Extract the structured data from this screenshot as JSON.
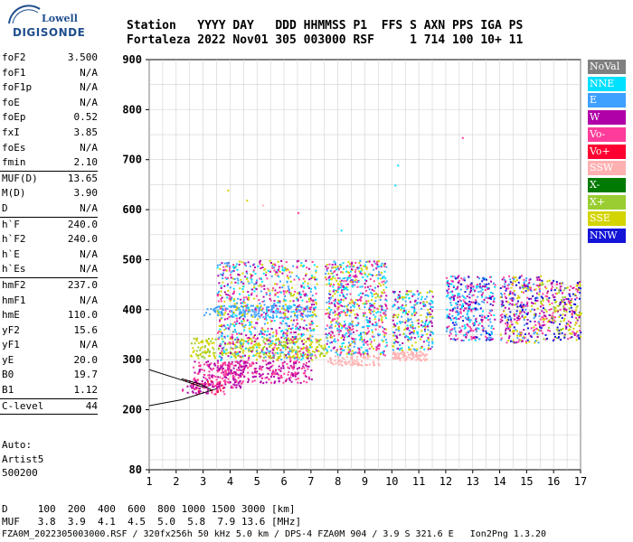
{
  "logo": {
    "line1": "Lowell",
    "line2": "DIGISONDE"
  },
  "header": {
    "line1": "Station   YYYY DAY   DDD HHMMSS P1  FFS S AXN PPS IGA PS",
    "line2": "Fortaleza 2022 Nov01 305 003000 RSF     1 714 100 10+ 11"
  },
  "params": [
    {
      "label": "foF2",
      "value": "3.500"
    },
    {
      "label": "foF1",
      "value": "N/A"
    },
    {
      "label": "foF1p",
      "value": "N/A"
    },
    {
      "label": "foE",
      "value": "N/A"
    },
    {
      "label": "foEp",
      "value": "0.52"
    },
    {
      "label": "fxI",
      "value": "3.85"
    },
    {
      "label": "foEs",
      "value": "N/A"
    },
    {
      "label": "fmin",
      "value": "2.10"
    },
    {
      "sep": true
    },
    {
      "label": "MUF(D)",
      "value": "13.65"
    },
    {
      "label": "M(D)",
      "value": "3.90"
    },
    {
      "label": "D",
      "value": "N/A"
    },
    {
      "sep": true
    },
    {
      "label": "h`F",
      "value": "240.0"
    },
    {
      "label": "h`F2",
      "value": "240.0"
    },
    {
      "label": "h`E",
      "value": "N/A"
    },
    {
      "label": "h`Es",
      "value": "N/A"
    },
    {
      "sep": true
    },
    {
      "label": "hmF2",
      "value": "237.0"
    },
    {
      "label": "hmF1",
      "value": "N/A"
    },
    {
      "label": "hmE",
      "value": "110.0"
    },
    {
      "label": "yF2",
      "value": "15.6"
    },
    {
      "label": "yF1",
      "value": "N/A"
    },
    {
      "label": "yE",
      "value": "20.0"
    },
    {
      "label": "B0",
      "value": "19.7"
    },
    {
      "label": "B1",
      "value": "1.12"
    },
    {
      "sep": true
    },
    {
      "label": "C-level",
      "value": "44"
    },
    {
      "sep": true
    }
  ],
  "auto": {
    "line1": "Auto:",
    "line2": "Artist5",
    "line3": "500200"
  },
  "footer": {
    "d_row": "D     100  200  400  600  800 1000 1500 3000 [km]",
    "muf_row": "MUF   3.8  3.9  4.1  4.5  5.0  5.8  7.9 13.6 [MHz]",
    "file_row": "FZA0M_2022305003000.RSF / 320fx256h 50 kHz 5.0 km / DPS-4 FZA0M 904 / 3.9 S 321.6 E   Ion2Png 1.3.20"
  },
  "chart_data": {
    "type": "scatter",
    "xlim": [
      1,
      17
    ],
    "ylim": [
      80,
      900
    ],
    "x_ticks": [
      1,
      2,
      3,
      4,
      5,
      6,
      7,
      8,
      9,
      10,
      11,
      12,
      13,
      14,
      15,
      16,
      17
    ],
    "y_ticks": [
      80,
      200,
      300,
      400,
      500,
      600,
      700,
      800,
      900
    ],
    "grid": true,
    "legend_position": "right",
    "legend": [
      {
        "name": "NoVal",
        "color": "#808080"
      },
      {
        "name": "NNE",
        "color": "#00e0ff"
      },
      {
        "name": "E",
        "color": "#3ea0ff"
      },
      {
        "name": "W",
        "color": "#b000a8"
      },
      {
        "name": "Vo-",
        "color": "#ff3c9a"
      },
      {
        "name": "Vo+",
        "color": "#ff0030"
      },
      {
        "name": "SSW",
        "color": "#ffb0b0"
      },
      {
        "name": "X-",
        "color": "#007a00"
      },
      {
        "name": "X+",
        "color": "#9acd32"
      },
      {
        "name": "SSE",
        "color": "#d4d400"
      },
      {
        "name": "NNW",
        "color": "#1414d8"
      }
    ],
    "clusters": [
      {
        "x": [
          2.2,
          3.8
        ],
        "y": [
          232,
          262
        ],
        "colors": [
          "Vo+",
          "Vo-",
          "W"
        ]
      },
      {
        "x": [
          2.6,
          4.5
        ],
        "y": [
          245,
          300
        ],
        "colors": [
          "Vo-",
          "W"
        ]
      },
      {
        "x": [
          3.5,
          7.0
        ],
        "y": [
          255,
          300
        ],
        "colors": [
          "Vo-",
          "W"
        ]
      },
      {
        "x": [
          2.5,
          7.5
        ],
        "y": [
          305,
          345
        ],
        "colors": [
          "SSE",
          "X+"
        ]
      },
      {
        "x": [
          3.0,
          7.0
        ],
        "y": [
          385,
          410
        ],
        "colors": [
          "E"
        ]
      },
      {
        "x": [
          3.5,
          7.2
        ],
        "y": [
          300,
          500
        ],
        "colors": [
          "W",
          "Vo-",
          "E",
          "NNE",
          "SSE"
        ]
      },
      {
        "x": [
          7.5,
          9.8
        ],
        "y": [
          310,
          500
        ],
        "colors": [
          "W",
          "Vo-",
          "E",
          "SSE",
          "NNE"
        ]
      },
      {
        "x": [
          7.6,
          9.5
        ],
        "y": [
          290,
          310
        ],
        "colors": [
          "SSW"
        ]
      },
      {
        "x": [
          10.0,
          11.5
        ],
        "y": [
          320,
          440
        ],
        "colors": [
          "W",
          "E",
          "SSE",
          "NNE"
        ]
      },
      {
        "x": [
          10.0,
          11.3
        ],
        "y": [
          300,
          318
        ],
        "colors": [
          "SSW"
        ]
      },
      {
        "x": [
          12.0,
          13.8
        ],
        "y": [
          340,
          470
        ],
        "colors": [
          "NNE",
          "E",
          "NNW",
          "W",
          "Vo-"
        ]
      },
      {
        "x": [
          14.0,
          15.5
        ],
        "y": [
          335,
          470
        ],
        "colors": [
          "NNW",
          "W",
          "Vo-",
          "E",
          "SSE"
        ]
      },
      {
        "x": [
          15.5,
          17.0
        ],
        "y": [
          340,
          460
        ],
        "colors": [
          "NNW",
          "SSE",
          "W",
          "Vo-",
          "X+"
        ]
      }
    ],
    "outliers": [
      {
        "x": 12.6,
        "y": 745,
        "color": "Vo-"
      },
      {
        "x": 10.2,
        "y": 690,
        "color": "NNE"
      },
      {
        "x": 10.1,
        "y": 650,
        "color": "NNE"
      },
      {
        "x": 3.9,
        "y": 640,
        "color": "SSE"
      },
      {
        "x": 4.6,
        "y": 620,
        "color": "SSE"
      },
      {
        "x": 5.2,
        "y": 610,
        "color": "SSW"
      },
      {
        "x": 6.5,
        "y": 595,
        "color": "Vo-"
      },
      {
        "x": 8.1,
        "y": 560,
        "color": "NNE"
      }
    ],
    "curves": [
      {
        "points": [
          [
            1,
            208
          ],
          [
            2.2,
            220
          ],
          [
            3.5,
            242
          ]
        ]
      },
      {
        "points": [
          [
            1,
            280
          ],
          [
            2,
            263
          ],
          [
            3,
            245
          ]
        ]
      },
      {
        "points": [
          [
            2.2,
            262
          ],
          [
            2.9,
            251
          ],
          [
            3.3,
            240
          ]
        ]
      }
    ]
  }
}
